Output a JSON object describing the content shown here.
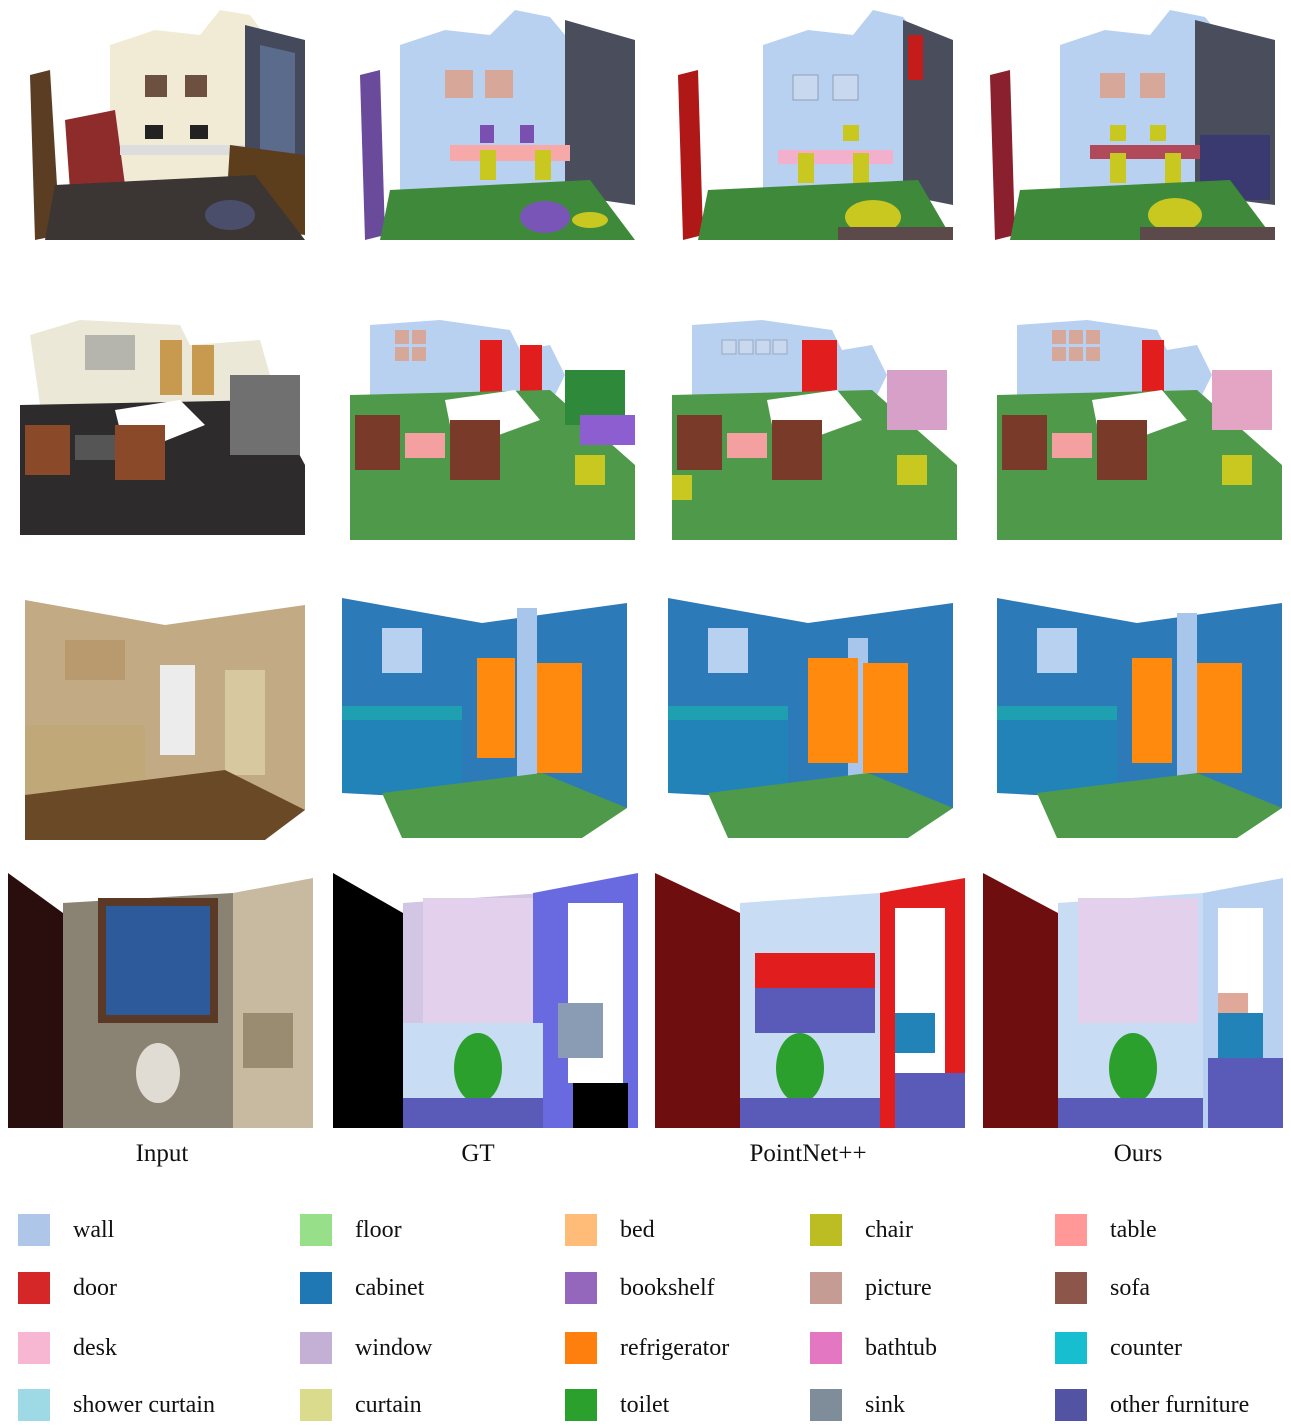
{
  "columns": [
    "Input",
    "GT",
    "PointNet++",
    "Ours"
  ],
  "legend": [
    {
      "label": "wall",
      "color": "#aec7e8"
    },
    {
      "label": "floor",
      "color": "#98df8a"
    },
    {
      "label": "bed",
      "color": "#ffbb78"
    },
    {
      "label": "chair",
      "color": "#bcbd22"
    },
    {
      "label": "table",
      "color": "#ff9896"
    },
    {
      "label": "door",
      "color": "#d62728"
    },
    {
      "label": "cabinet",
      "color": "#1f77b4"
    },
    {
      "label": "bookshelf",
      "color": "#9467bd"
    },
    {
      "label": "picture",
      "color": "#c49c94"
    },
    {
      "label": "sofa",
      "color": "#8c564b"
    },
    {
      "label": "desk",
      "color": "#f7b6d2"
    },
    {
      "label": "window",
      "color": "#c5b0d5"
    },
    {
      "label": "refrigerator",
      "color": "#ff7f0e"
    },
    {
      "label": "bathtub",
      "color": "#e377c2"
    },
    {
      "label": "counter",
      "color": "#17becf"
    },
    {
      "label": "shower curtain",
      "color": "#9edae5"
    },
    {
      "label": "curtain",
      "color": "#dbdb8d"
    },
    {
      "label": "toilet",
      "color": "#2ca02c"
    },
    {
      "label": "sink",
      "color": "#7f8c9a"
    },
    {
      "label": "other furniture",
      "color": "#5254a3"
    }
  ]
}
